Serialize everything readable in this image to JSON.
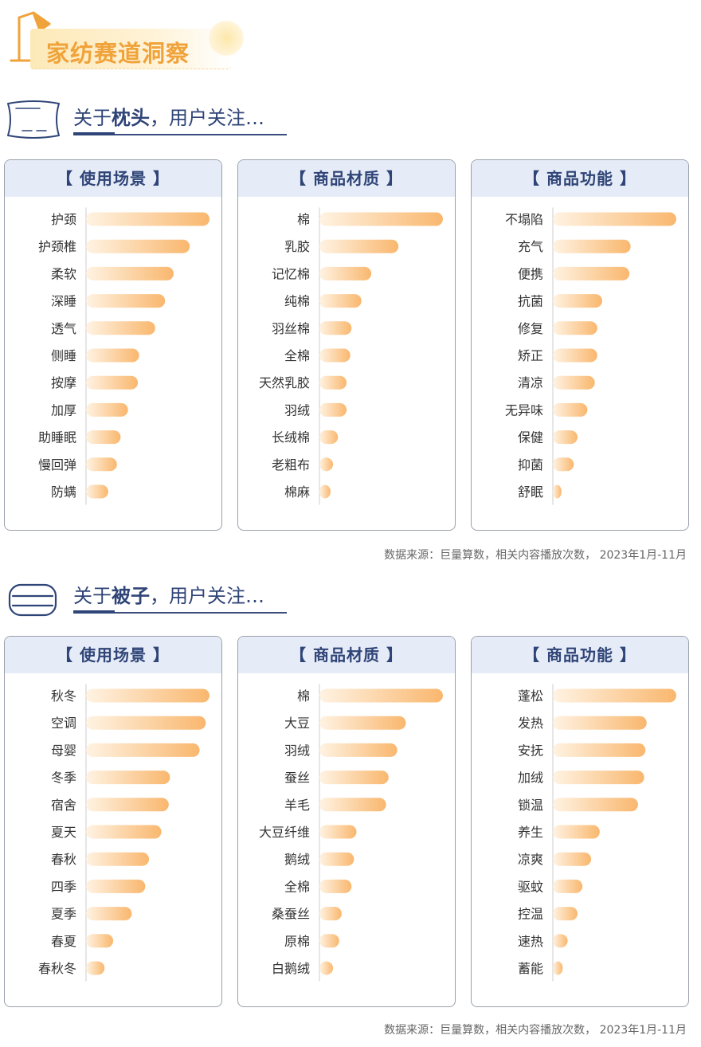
{
  "page_title": "家纺赛道洞察",
  "source_text": "数据来源：巨量算数，相关内容播放次数， 2023年1月-11月",
  "colors": {
    "bar_start": "#fff3e3",
    "bar_end": "#f9b76e",
    "accent": "#f0a33a",
    "navy": "#2f4477"
  },
  "sections": [
    {
      "prefix": "关于",
      "topic": "枕头",
      "suffix": "，用户关注…",
      "icon": "pillow-icon",
      "source_text": "数据来源：巨量算数，相关内容播放次数， 2023年1月-11月"
    },
    {
      "prefix": "关于",
      "topic": "被子",
      "suffix": "，用户关注…",
      "icon": "quilt-icon",
      "source_text": "数据来源：巨量算数，相关内容播放次数， 2023年1月-11月"
    }
  ],
  "chart_data": [
    {
      "type": "bar",
      "orientation": "horizontal",
      "title": "【 使用场景 】",
      "categories": [
        "护颈",
        "护颈椎",
        "柔软",
        "深睡",
        "透气",
        "侧睡",
        "按摩",
        "加厚",
        "助睡眠",
        "慢回弹",
        "防螨"
      ],
      "values": [
        100,
        84,
        71,
        64,
        56,
        43,
        42,
        34,
        28,
        25,
        18
      ]
    },
    {
      "type": "bar",
      "orientation": "horizontal",
      "title": "【 商品材质 】",
      "categories": [
        "棉",
        "乳胶",
        "记忆棉",
        "纯棉",
        "羽丝棉",
        "全棉",
        "天然乳胶",
        "羽绒",
        "长绒棉",
        "老粗布",
        "棉麻"
      ],
      "values": [
        100,
        64,
        42,
        34,
        26,
        25,
        22,
        22,
        15,
        11,
        9
      ]
    },
    {
      "type": "bar",
      "orientation": "horizontal",
      "title": "【 商品功能 】",
      "categories": [
        "不塌陷",
        "充气",
        "便携",
        "抗菌",
        "修复",
        "矫正",
        "清凉",
        "无异味",
        "保健",
        "抑菌",
        "舒眠"
      ],
      "values": [
        100,
        63,
        62,
        40,
        36,
        36,
        34,
        28,
        20,
        17,
        7
      ]
    },
    {
      "type": "bar",
      "orientation": "horizontal",
      "title": "【 使用场景 】",
      "categories": [
        "秋冬",
        "空调",
        "母婴",
        "冬季",
        "宿舍",
        "夏天",
        "春秋",
        "四季",
        "夏季",
        "春夏",
        "春秋冬"
      ],
      "values": [
        100,
        97,
        92,
        68,
        67,
        61,
        51,
        48,
        37,
        22,
        15
      ]
    },
    {
      "type": "bar",
      "orientation": "horizontal",
      "title": "【 商品材质 】",
      "categories": [
        "棉",
        "大豆",
        "羽绒",
        "蚕丝",
        "羊毛",
        "大豆纤维",
        "鹅绒",
        "全棉",
        "桑蚕丝",
        "原棉",
        "白鹅绒"
      ],
      "values": [
        100,
        70,
        63,
        56,
        54,
        30,
        28,
        26,
        18,
        16,
        11
      ]
    },
    {
      "type": "bar",
      "orientation": "horizontal",
      "title": "【 商品功能 】",
      "categories": [
        "蓬松",
        "发热",
        "安抚",
        "加绒",
        "锁温",
        "养生",
        "凉爽",
        "驱蚊",
        "控温",
        "速热",
        "蓄能"
      ],
      "values": [
        100,
        76,
        75,
        74,
        69,
        38,
        31,
        24,
        20,
        12,
        8
      ]
    }
  ]
}
